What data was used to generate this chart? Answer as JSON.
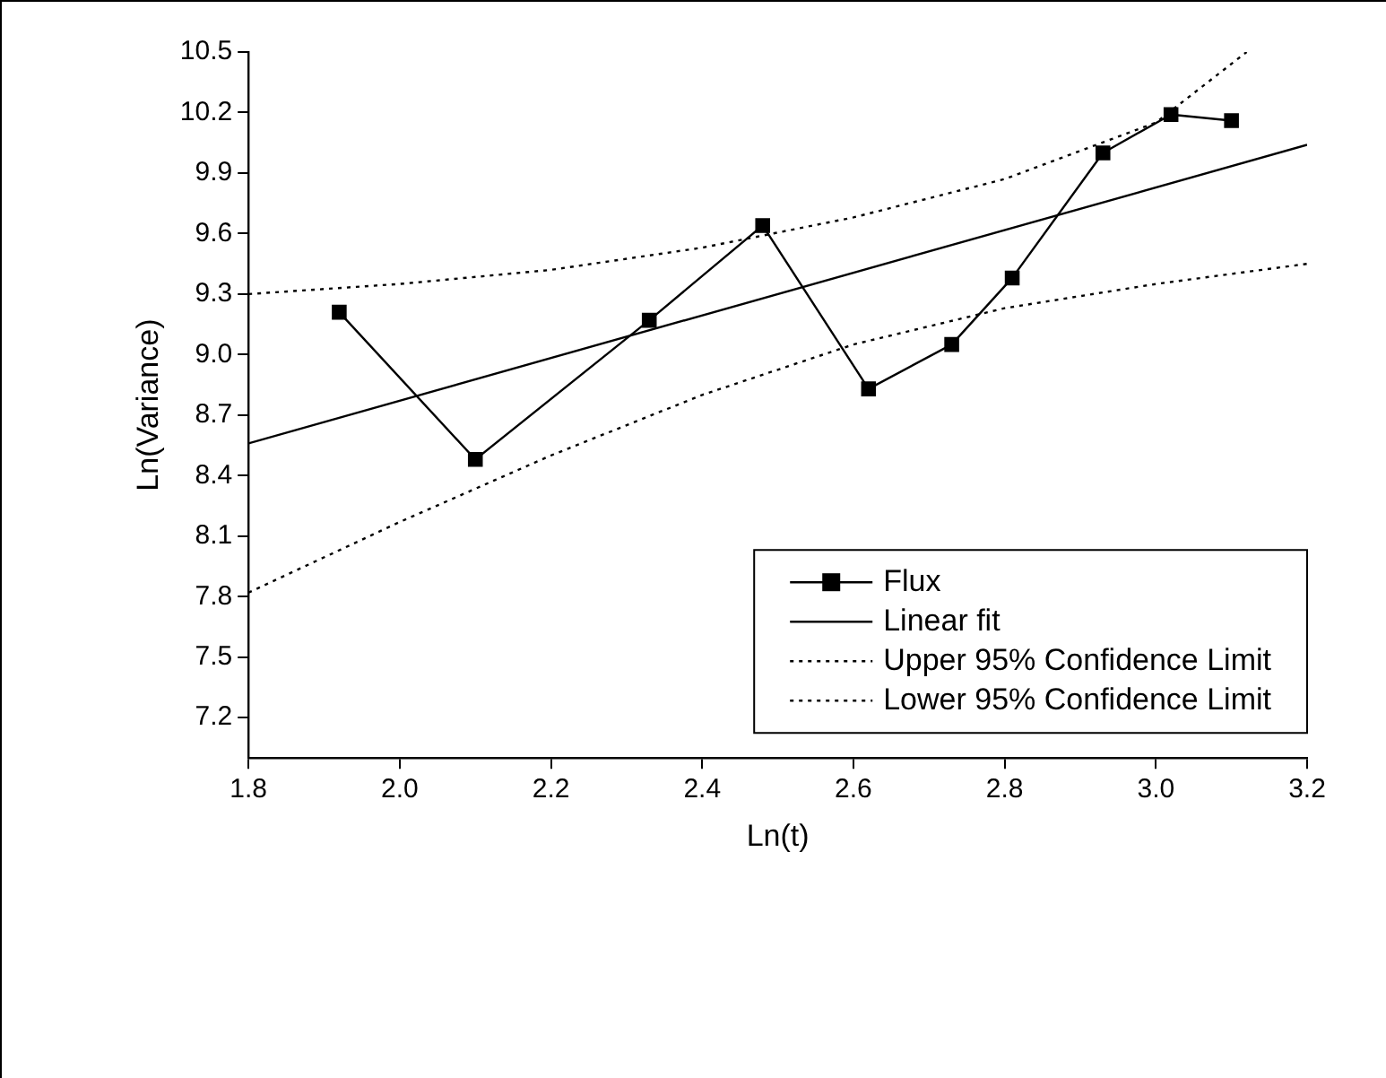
{
  "chart_data": {
    "type": "line",
    "xlabel": "Ln(t)",
    "ylabel": "Ln(Variance)",
    "xlim": [
      1.8,
      3.2
    ],
    "xticks": [
      1.8,
      {
        "value": 2,
        "label": "2.0"
      },
      2.2,
      2.4,
      2.6,
      2.8,
      {
        "value": 3,
        "label": "3.0"
      },
      3.2
    ],
    "ylim": [
      7.0,
      10.5
    ],
    "yticks": [
      7.2,
      7.5,
      7.8,
      8.1,
      8.4,
      8.7,
      {
        "value": 9,
        "label": "9.0"
      },
      9.3,
      9.6,
      9.9,
      10.2,
      10.5
    ],
    "grid": false,
    "legend": "bottom right",
    "series": [
      {
        "name": "Flux",
        "color": "#000000",
        "marker": "square",
        "line_style": "solid",
        "x": [
          1.92,
          2.1,
          2.33,
          2.48,
          2.62,
          2.73,
          2.81,
          2.93,
          3.02,
          3.1
        ],
        "values": [
          9.21,
          8.48,
          9.17,
          9.64,
          8.83,
          9.05,
          9.38,
          10.0,
          10.19,
          10.16
        ]
      },
      {
        "name": "Linear fit",
        "color": "#000000",
        "marker": "none",
        "line_style": "solid",
        "x": [
          1.8,
          3.2
        ],
        "values": [
          8.56,
          10.04
        ]
      },
      {
        "name": "Upper 95% Confidence Limit",
        "color": "#000000",
        "marker": "none",
        "line_style": "dotted",
        "x": [
          1.8,
          2.0,
          2.2,
          2.4,
          2.6,
          2.8,
          3.0,
          3.12
        ],
        "values": [
          9.3,
          9.35,
          9.42,
          9.53,
          9.68,
          9.87,
          10.15,
          10.5
        ]
      },
      {
        "name": "Lower 95% Confidence Limit",
        "color": "#000000",
        "marker": "none",
        "line_style": "dotted",
        "x": [
          1.8,
          2.0,
          2.2,
          2.4,
          2.6,
          2.8,
          3.0,
          3.2
        ],
        "values": [
          7.82,
          8.17,
          8.5,
          8.8,
          9.05,
          9.23,
          9.35,
          9.45
        ]
      }
    ]
  }
}
